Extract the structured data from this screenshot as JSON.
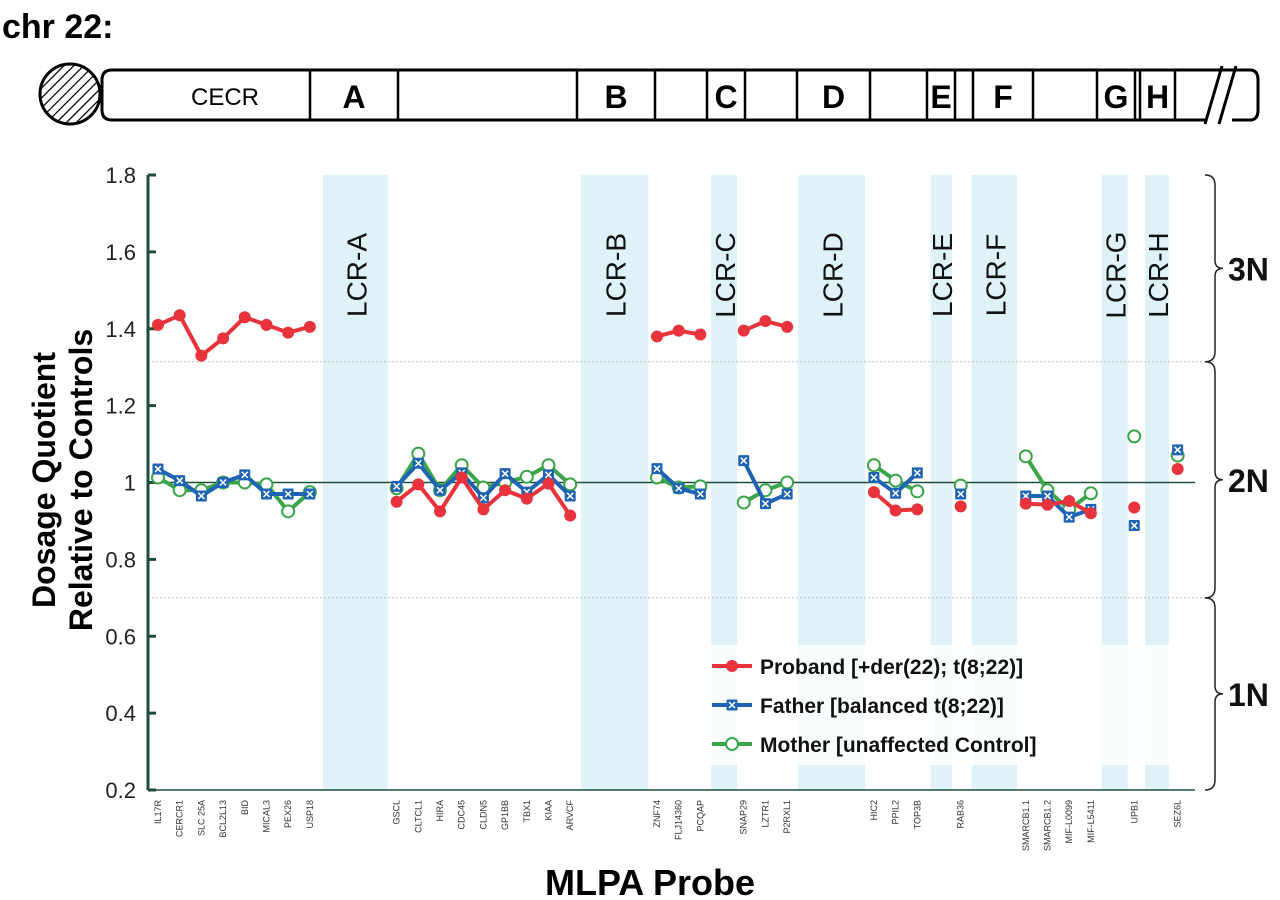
{
  "chart_data": {
    "type": "line",
    "chromosome": {
      "title": "chr 22:",
      "regions": [
        "CECR",
        "A",
        "B",
        "C",
        "D",
        "E",
        "F",
        "G",
        "H"
      ]
    },
    "ylabel": [
      "Dosage Quotient",
      "Relative to Controls"
    ],
    "xlabel": "MLPA Probe",
    "ylim": [
      0.2,
      1.8
    ],
    "yticks": [
      "0.2",
      "0.4",
      "0.6",
      "0.8",
      "1",
      "1.2",
      "1.4",
      "1.6",
      "1.8"
    ],
    "reference_line": 1.0,
    "threshold_lines": [
      1.314,
      0.7
    ],
    "copy_number_labels": [
      {
        "label": "3N",
        "range": [
          1.314,
          1.8
        ]
      },
      {
        "label": "2N",
        "range": [
          0.7,
          1.314
        ]
      },
      {
        "label": "1N",
        "range": [
          0.2,
          0.7
        ]
      }
    ],
    "lcr_regions": [
      {
        "label": "LCR-A",
        "range": [
          7.6,
          10.6
        ]
      },
      {
        "label": "LCR-B",
        "range": [
          19.5,
          22.6
        ]
      },
      {
        "label": "LCR-C",
        "range": [
          25.5,
          26.7
        ]
      },
      {
        "label": "LCR-D",
        "range": [
          29.5,
          32.6
        ]
      },
      {
        "label": "LCR-E",
        "range": [
          35.6,
          36.6
        ]
      },
      {
        "label": "LCR-F",
        "range": [
          37.5,
          39.6
        ]
      },
      {
        "label": "LCR-G",
        "range": [
          43.5,
          44.7
        ]
      },
      {
        "label": "LCR-H",
        "range": [
          45.5,
          46.6
        ]
      }
    ],
    "probes": [
      "IL17R",
      "CERCR1",
      "SLC 25A",
      "BCL2L13",
      "BID",
      "MICAL3",
      "PEX26",
      "USP18",
      "GSCL",
      "CLTCL1",
      "HIRA",
      "CDC45",
      "CLDN5",
      "GP1BB",
      "TBX1",
      "KIAA",
      "ARVCF",
      "ZNF74",
      "FLJ14360",
      "PCQAP",
      "SNAP29",
      "LZTR1",
      "P2RXL1",
      "HIC2",
      "PPIL2",
      "TOP3B",
      "RAB36",
      "SMARCB1.1",
      "SMARCB1.2",
      "MIF-L0099",
      "MIF-L5411",
      "UPB1",
      "SEZ6L"
    ],
    "x": [
      0,
      1,
      2,
      3,
      4,
      5,
      6,
      7,
      11,
      12,
      13,
      14,
      15,
      16,
      17,
      18,
      19,
      23,
      24,
      25,
      27,
      28,
      29,
      33,
      34,
      35,
      37,
      40,
      41,
      42,
      43,
      45,
      47
    ],
    "xlim": [
      -0.46,
      47.8
    ],
    "groups": [
      [
        0,
        7
      ],
      [
        8,
        16
      ],
      [
        17,
        19
      ],
      [
        20,
        22
      ],
      [
        23,
        25
      ],
      [
        26,
        26
      ],
      [
        27,
        30
      ],
      [
        31,
        31
      ],
      [
        32,
        32
      ]
    ],
    "series": [
      {
        "name": "Proband [+der(22); t(8;22)]",
        "color": "#e8323c",
        "marker": "filled-circle",
        "values": [
          1.41,
          1.435,
          1.33,
          1.375,
          1.43,
          1.41,
          1.39,
          1.405,
          0.95,
          0.995,
          0.925,
          1.013,
          0.93,
          0.98,
          0.958,
          0.997,
          0.914,
          1.38,
          1.395,
          1.385,
          1.395,
          1.42,
          1.405,
          0.975,
          0.927,
          0.93,
          0.938,
          0.945,
          0.942,
          0.952,
          0.92,
          0.935,
          1.035
        ]
      },
      {
        "name": "Father [balanced t(8;22)]",
        "color": "#1f63b4",
        "marker": "crossed-square",
        "values": [
          1.035,
          1.005,
          0.965,
          1.0,
          1.02,
          0.97,
          0.97,
          0.97,
          0.99,
          1.05,
          0.98,
          1.025,
          0.96,
          1.023,
          0.975,
          1.02,
          0.965,
          1.036,
          0.985,
          0.97,
          1.057,
          0.945,
          0.97,
          1.013,
          0.972,
          1.025,
          0.97,
          0.965,
          0.965,
          0.91,
          0.93,
          0.888,
          1.085
        ]
      },
      {
        "name": "Mother [unaffected Control]",
        "color": "#3aa54a",
        "marker": "open-circle",
        "values": [
          1.013,
          0.98,
          0.98,
          1.0,
          1.0,
          0.995,
          0.925,
          0.975,
          0.985,
          1.075,
          0.98,
          1.045,
          0.987,
          1.0,
          1.015,
          1.045,
          0.995,
          1.013,
          0.987,
          0.99,
          0.948,
          0.98,
          1.0,
          1.045,
          1.005,
          0.977,
          0.992,
          1.068,
          0.98,
          0.93,
          0.972,
          1.12,
          1.07
        ]
      }
    ],
    "legend_position": "bottom-right",
    "colors": {
      "lcr_band": "#dff2f7",
      "axis": "#1e4d3c"
    }
  }
}
